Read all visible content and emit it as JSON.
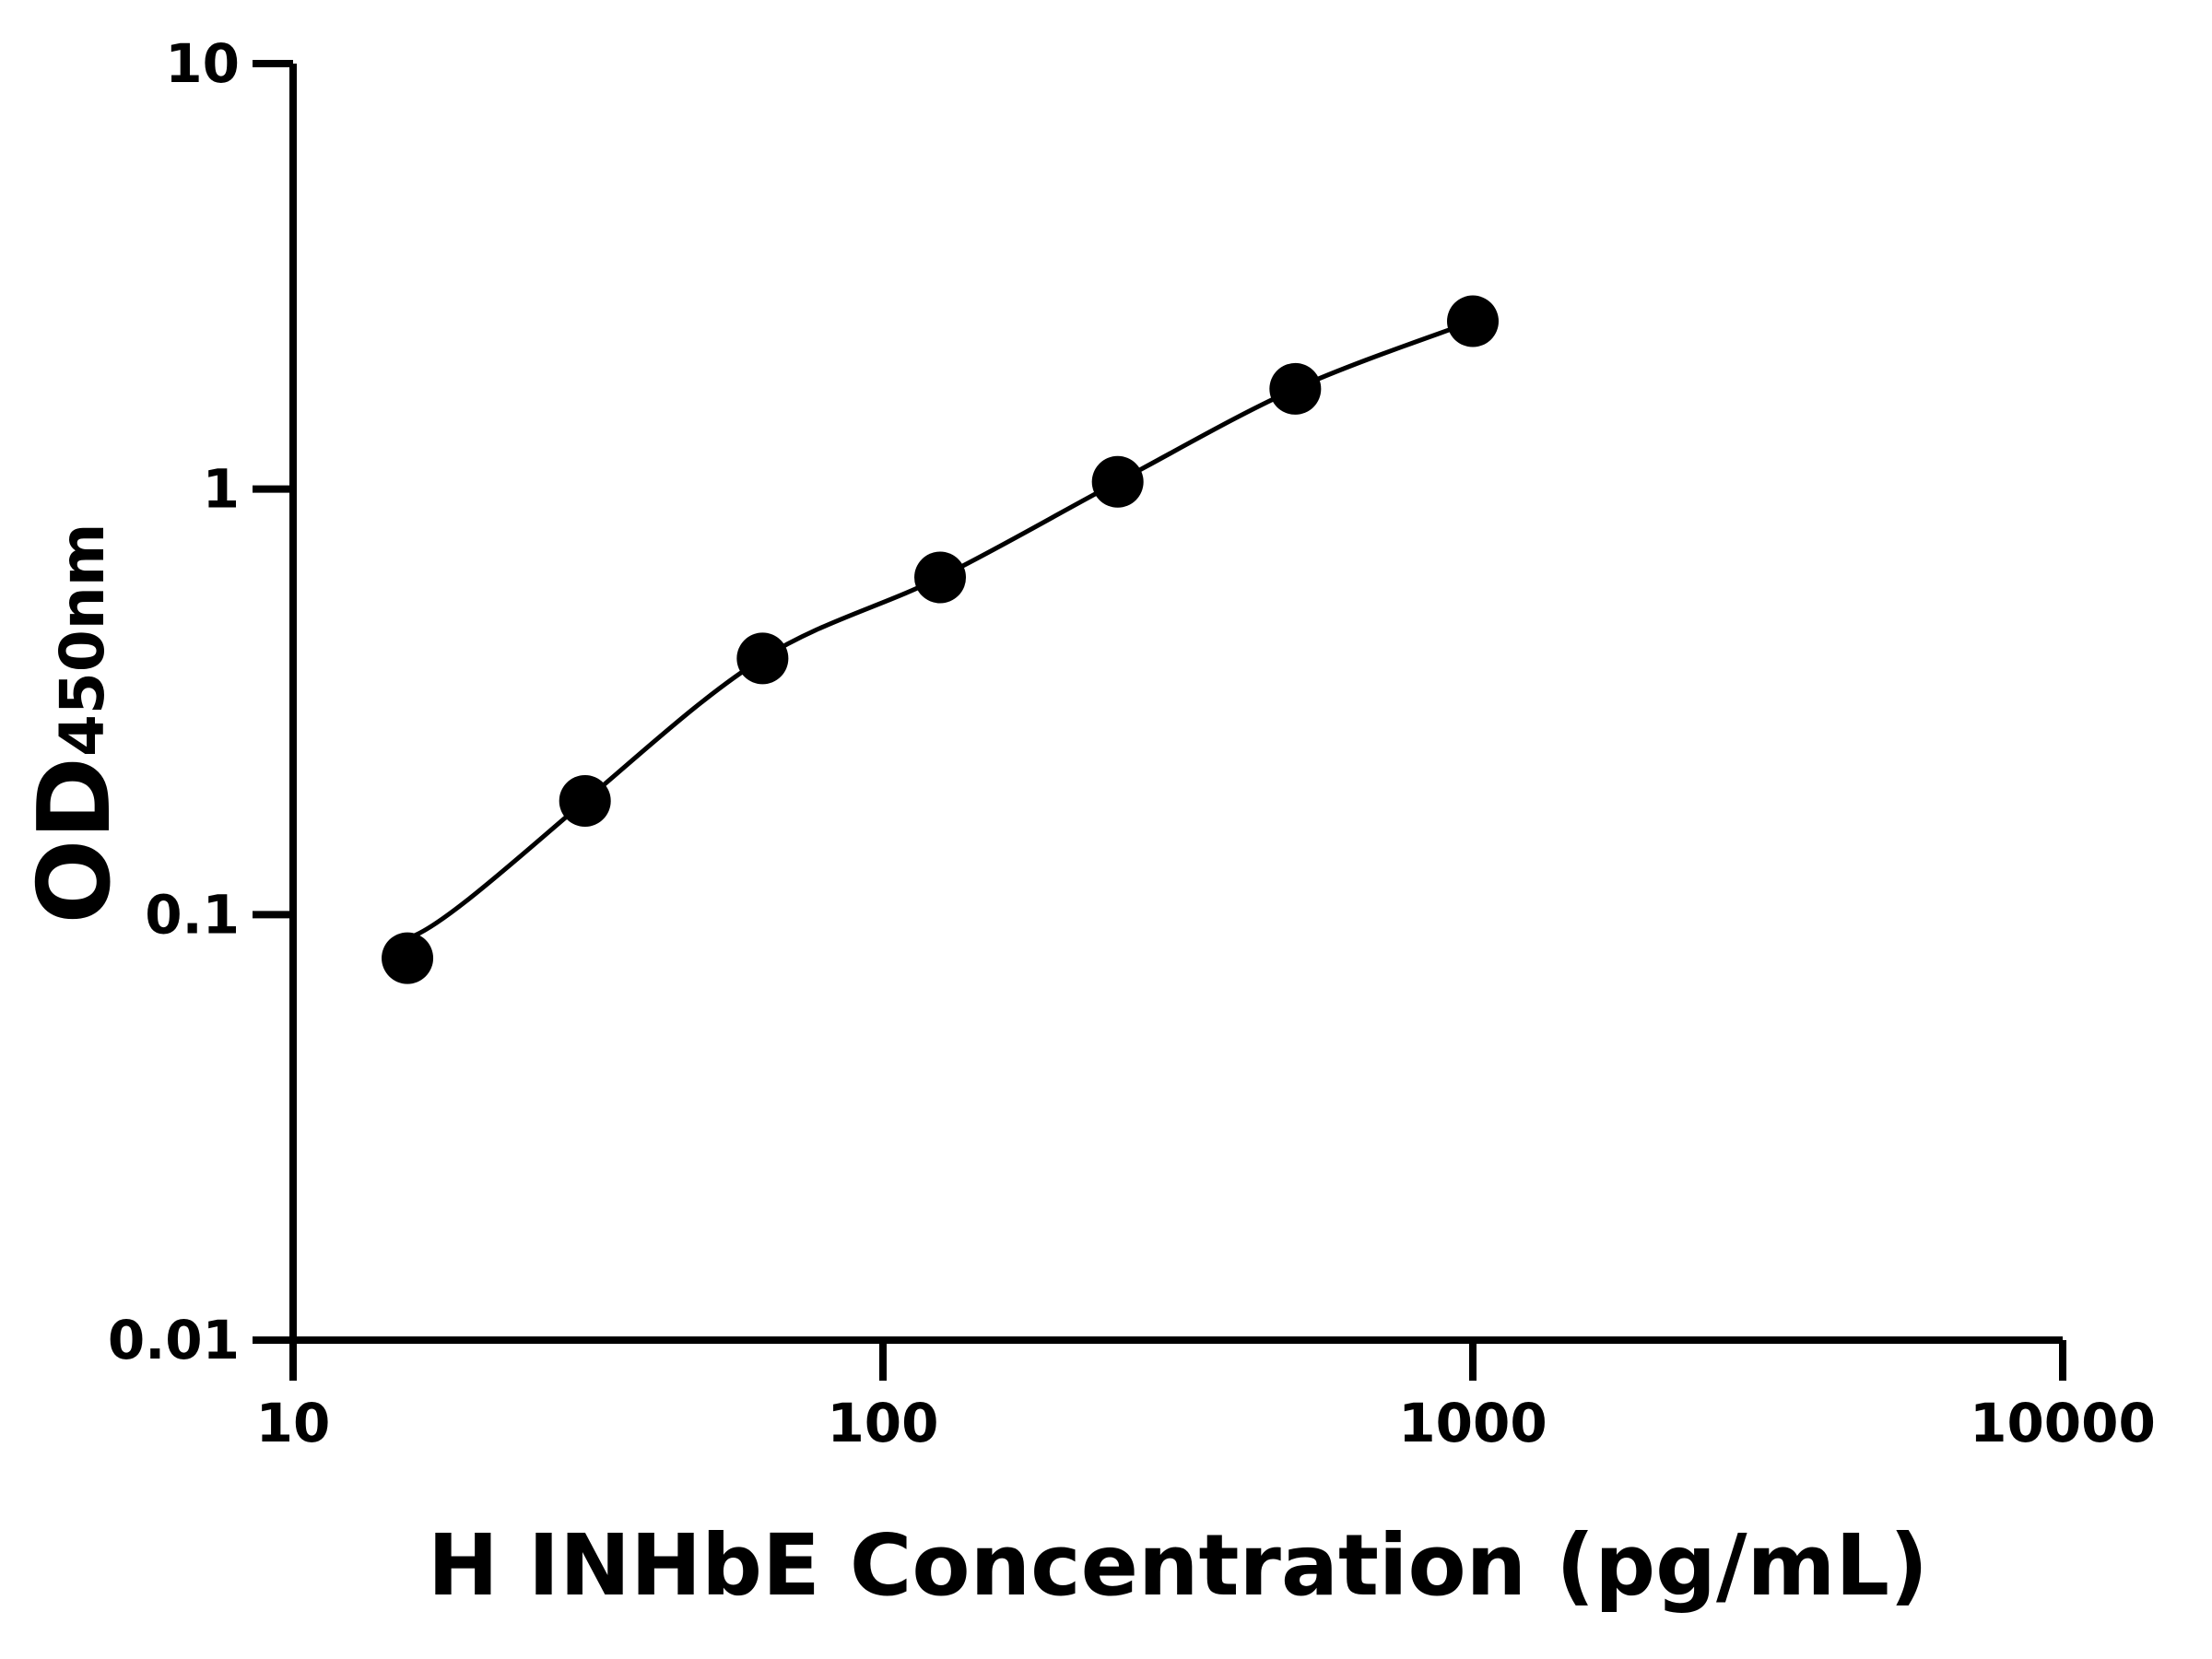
{
  "chart_data": {
    "type": "scatter",
    "title": "",
    "xlabel": "H INHbE Concentration (pg/mL)",
    "ylabel_main": "OD",
    "ylabel_sub": "450nm",
    "x_scale": "log",
    "y_scale": "log",
    "xlim": [
      10,
      10000
    ],
    "ylim": [
      0.01,
      10
    ],
    "x_ticks": [
      10,
      100,
      1000,
      10000
    ],
    "x_tick_labels": [
      "10",
      "100",
      "1000",
      "10000"
    ],
    "y_ticks": [
      0.01,
      0.1,
      1,
      10
    ],
    "y_tick_labels": [
      "0.01",
      "0.1",
      "1",
      "10"
    ],
    "grid": false,
    "legend": "none",
    "fit_curve": true,
    "series": [
      {
        "x": [
          15.625,
          31.25,
          62.5,
          125,
          250,
          500,
          1000
        ],
        "y": [
          0.079,
          0.185,
          0.4,
          0.62,
          1.04,
          1.72,
          2.48
        ]
      }
    ],
    "colors": {
      "marker": "#000000",
      "line": "#000000",
      "axis": "#000000"
    }
  }
}
